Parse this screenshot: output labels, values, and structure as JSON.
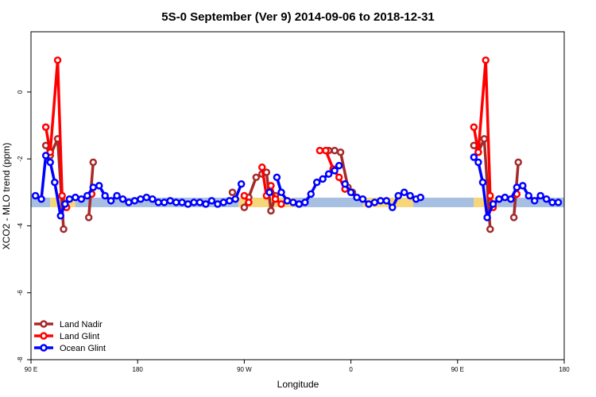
{
  "chart_data": {
    "type": "line",
    "title": "5S-0 September (Ver 9)   2014-09-06 to 2018-12-31",
    "xlabel": "Longitude",
    "ylabel": "XCO2 - MLO trend (ppm)",
    "xlim": [
      90,
      450
    ],
    "ylim": [
      -8,
      1.8
    ],
    "x_ticks": [
      {
        "value": 90,
        "label": "90 E"
      },
      {
        "value": 162,
        "label": "180"
      },
      {
        "value": 234,
        "label": "90 W"
      },
      {
        "value": 306,
        "label": "0"
      },
      {
        "value": 378,
        "label": "90 E"
      },
      {
        "value": 450,
        "label": "180"
      }
    ],
    "y_ticks": [
      0,
      -2,
      -4,
      -6,
      -8
    ],
    "grid": false,
    "legend_position": "bottom-left",
    "band": {
      "y": -3.3,
      "segments": [
        {
          "from": 90,
          "to": 103,
          "surface": "ocean"
        },
        {
          "from": 103,
          "to": 120,
          "surface": "land"
        },
        {
          "from": 120,
          "to": 230,
          "surface": "ocean"
        },
        {
          "from": 230,
          "to": 268,
          "surface": "land"
        },
        {
          "from": 268,
          "to": 314,
          "surface": "ocean"
        },
        {
          "from": 314,
          "to": 348,
          "surface": "land"
        },
        {
          "from": 348,
          "to": 389,
          "surface": "ocean"
        },
        {
          "from": 389,
          "to": 405,
          "surface": "land"
        },
        {
          "from": 405,
          "to": 450,
          "surface": "ocean"
        }
      ],
      "colors": {
        "ocean": "#a7bfe0",
        "land": "#f6d67a"
      }
    },
    "series": [
      {
        "name": "Land Nadir",
        "color": "#a52a2a",
        "segments": [
          [
            [
              100,
              -1.6
            ],
            [
              103,
              -1.9
            ],
            [
              108,
              -1.4
            ],
            [
              112,
              -4.1
            ]
          ],
          [
            [
              129,
              -3.75
            ],
            [
              132,
              -2.1
            ]
          ],
          [
            [
              226,
              -3.0
            ]
          ],
          [
            [
              234,
              -3.45
            ],
            [
              237,
              -3.15
            ],
            [
              242,
              -2.55
            ]
          ],
          [
            [
              246,
              -2.45
            ],
            [
              249,
              -2.4
            ],
            [
              252,
              -3.55
            ],
            [
              255,
              -3.1
            ]
          ],
          [
            [
              291,
              -1.75
            ],
            [
              295,
              -1.75
            ],
            [
              299,
              -1.8
            ],
            [
              304,
              -2.85
            ],
            [
              307,
              -3.0
            ]
          ],
          [
            [
              389,
              -1.6
            ],
            [
              392,
              -1.8
            ],
            [
              396,
              -1.4
            ],
            [
              400,
              -4.1
            ]
          ],
          [
            [
              416,
              -3.75
            ],
            [
              419,
              -2.1
            ]
          ]
        ]
      },
      {
        "name": "Land Glint",
        "color": "#ff0000",
        "segments": [
          [
            [
              100,
              -1.05
            ],
            [
              103,
              -1.8
            ],
            [
              108,
              0.95
            ],
            [
              111,
              -3.1
            ],
            [
              114,
              -3.45
            ]
          ],
          [
            [
              131,
              -3.05
            ]
          ],
          [
            [
              234,
              -3.1
            ],
            [
              237,
              -3.3
            ]
          ],
          [
            [
              246,
              -2.25
            ],
            [
              249,
              -3.1
            ],
            [
              252,
              -2.8
            ],
            [
              255,
              -3.2
            ],
            [
              259,
              -3.35
            ]
          ],
          [
            [
              285,
              -1.75
            ],
            [
              289,
              -1.75
            ],
            [
              294,
              -2.3
            ],
            [
              298,
              -2.55
            ],
            [
              302,
              -2.9
            ]
          ],
          [
            [
              389,
              -1.05
            ],
            [
              392,
              -1.8
            ],
            [
              397,
              0.95
            ],
            [
              400,
              -3.1
            ],
            [
              402,
              -3.45
            ]
          ],
          [
            [
              406,
              -3.2
            ]
          ],
          [
            [
              418,
              -3.05
            ]
          ]
        ]
      },
      {
        "name": "Ocean Glint",
        "color": "#0000ff",
        "segments": [
          [
            [
              93,
              -3.1
            ],
            [
              97,
              -3.2
            ],
            [
              100,
              -1.9
            ],
            [
              103,
              -2.1
            ],
            [
              106,
              -2.7
            ],
            [
              110,
              -3.7
            ],
            [
              113,
              -3.35
            ],
            [
              116,
              -3.2
            ],
            [
              120,
              -3.15
            ],
            [
              124,
              -3.2
            ],
            [
              128,
              -3.1
            ],
            [
              132,
              -2.85
            ],
            [
              136,
              -2.8
            ],
            [
              140,
              -3.1
            ],
            [
              144,
              -3.25
            ],
            [
              148,
              -3.1
            ],
            [
              152,
              -3.2
            ],
            [
              156,
              -3.3
            ],
            [
              160,
              -3.25
            ],
            [
              164,
              -3.2
            ],
            [
              168,
              -3.15
            ],
            [
              172,
              -3.2
            ],
            [
              176,
              -3.3
            ],
            [
              180,
              -3.3
            ],
            [
              184,
              -3.25
            ],
            [
              188,
              -3.3
            ],
            [
              192,
              -3.3
            ],
            [
              196,
              -3.35
            ],
            [
              200,
              -3.3
            ],
            [
              204,
              -3.3
            ],
            [
              208,
              -3.35
            ],
            [
              212,
              -3.25
            ],
            [
              216,
              -3.35
            ],
            [
              220,
              -3.3
            ],
            [
              224,
              -3.25
            ],
            [
              228,
              -3.2
            ],
            [
              232,
              -2.75
            ]
          ],
          [
            [
              251,
              -3.0
            ]
          ],
          [
            [
              256,
              -2.55
            ],
            [
              259,
              -3.0
            ],
            [
              263,
              -3.25
            ],
            [
              267,
              -3.3
            ],
            [
              271,
              -3.35
            ],
            [
              275,
              -3.3
            ],
            [
              279,
              -3.05
            ],
            [
              283,
              -2.7
            ],
            [
              287,
              -2.6
            ],
            [
              291,
              -2.45
            ],
            [
              295,
              -2.35
            ],
            [
              298,
              -2.2
            ]
          ],
          [
            [
              302,
              -2.75
            ],
            [
              306,
              -3.0
            ],
            [
              310,
              -3.15
            ],
            [
              314,
              -3.2
            ],
            [
              318,
              -3.35
            ],
            [
              322,
              -3.3
            ],
            [
              326,
              -3.25
            ],
            [
              330,
              -3.25
            ],
            [
              334,
              -3.45
            ],
            [
              338,
              -3.1
            ],
            [
              342,
              -3.0
            ],
            [
              346,
              -3.1
            ],
            [
              350,
              -3.2
            ],
            [
              353,
              -3.15
            ]
          ],
          [
            [
              389,
              -1.95
            ],
            [
              392,
              -2.1
            ],
            [
              395,
              -2.7
            ],
            [
              398,
              -3.75
            ],
            [
              402,
              -3.35
            ],
            [
              406,
              -3.2
            ],
            [
              410,
              -3.15
            ],
            [
              414,
              -3.2
            ],
            [
              418,
              -2.85
            ],
            [
              422,
              -2.8
            ],
            [
              426,
              -3.1
            ],
            [
              430,
              -3.25
            ],
            [
              434,
              -3.1
            ],
            [
              438,
              -3.2
            ],
            [
              442,
              -3.3
            ],
            [
              446,
              -3.3
            ]
          ]
        ]
      }
    ]
  }
}
